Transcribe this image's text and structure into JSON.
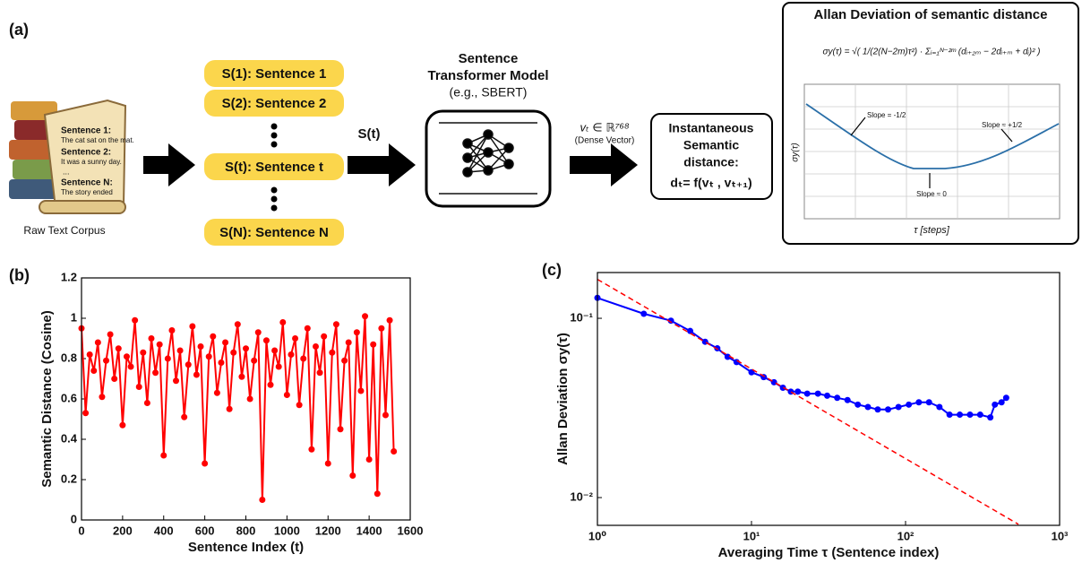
{
  "diagram": {
    "label": "(a)",
    "corpus": {
      "lines": [
        "Sentence 1:",
        "The cat sat on the mat.",
        "Sentence 2:",
        "It was a sunny day.",
        "...",
        "Sentence N:",
        "The story ended"
      ],
      "caption": "Raw Text Corpus"
    },
    "sentences": [
      "S(1): Sentence 1",
      "S(2): Sentence 2",
      "S(t): Sentence t",
      "S(N): Sentence N"
    ],
    "arrow_label": "S(t)",
    "model": {
      "title_lines": [
        "Sentence",
        "Transformer Model"
      ],
      "subtitle": "(e.g., SBERT)"
    },
    "vector_label": "vₜ ∈ ℝ⁷⁶⁸",
    "vector_note": "(Dense Vector)",
    "distance": {
      "lines": [
        "Instantaneous",
        "Semantic",
        "distance:"
      ],
      "formula": "dₜ= f(vₜ , vₜ₊₁)"
    },
    "allan": {
      "title": "Allan Deviation of semantic distance",
      "formula": "σy(τ) = √( 1/(2(N−2m)τ²) · Σᵢ₌₁ᴺ⁻²ᵐ (dᵢ₊₂ₘ − 2dᵢ₊ₘ + dᵢ)² )",
      "slopes": [
        "Slope = -1/2",
        "Slope ≈ +1/2",
        "Slope ≈ 0"
      ],
      "ylabel": "σy(τ)",
      "xlabel": "τ [steps]"
    }
  },
  "chart_data": [
    {
      "type": "line",
      "panel_label": "(b)",
      "xlabel": "Sentence Index (t)",
      "ylabel": "Semantic Distance (Cosine)",
      "x": [
        0,
        20,
        40,
        60,
        80,
        100,
        120,
        140,
        160,
        180,
        200,
        220,
        240,
        260,
        280,
        300,
        320,
        340,
        360,
        380,
        400,
        420,
        440,
        460,
        480,
        500,
        520,
        540,
        560,
        580,
        600,
        620,
        640,
        660,
        680,
        700,
        720,
        740,
        760,
        780,
        800,
        820,
        840,
        860,
        880,
        900,
        920,
        940,
        960,
        980,
        1000,
        1020,
        1040,
        1060,
        1080,
        1100,
        1120,
        1140,
        1160,
        1180,
        1200,
        1220,
        1240,
        1260,
        1280,
        1300,
        1320,
        1340,
        1360,
        1380,
        1400,
        1420,
        1440,
        1460,
        1480,
        1500,
        1520
      ],
      "series": [
        {
          "color": "#ff0000",
          "marker": true,
          "values": [
            0.95,
            0.53,
            0.82,
            0.74,
            0.88,
            0.61,
            0.79,
            0.92,
            0.7,
            0.85,
            0.47,
            0.81,
            0.76,
            0.99,
            0.66,
            0.83,
            0.58,
            0.9,
            0.73,
            0.87,
            0.32,
            0.8,
            0.94,
            0.69,
            0.84,
            0.51,
            0.77,
            0.96,
            0.72,
            0.86,
            0.28,
            0.81,
            0.91,
            0.63,
            0.78,
            0.88,
            0.55,
            0.83,
            0.97,
            0.71,
            0.85,
            0.6,
            0.79,
            0.93,
            0.1,
            0.89,
            0.67,
            0.84,
            0.76,
            0.98,
            0.62,
            0.82,
            0.9,
            0.57,
            0.8,
            0.95,
            0.35,
            0.86,
            0.73,
            0.91,
            0.28,
            0.83,
            0.97,
            0.45,
            0.79,
            0.88,
            0.22,
            0.93,
            0.64,
            1.01,
            0.3,
            0.87,
            0.13,
            0.95,
            0.52,
            0.99,
            0.34
          ]
        }
      ],
      "xlim": [
        0,
        1600
      ],
      "xticks": [
        0,
        200,
        400,
        600,
        800,
        1000,
        1200,
        1400,
        1600
      ],
      "ylim": [
        0,
        1.2
      ],
      "yticks": [
        0,
        0.2,
        0.4,
        0.6,
        0.8,
        1,
        1.2
      ]
    },
    {
      "type": "line",
      "panel_label": "(c)",
      "xlabel": "Averaging Time τ (Sentence index)",
      "ylabel": "Allan  Deviation σy(τ)",
      "log_x": true,
      "log_y": true,
      "series": [
        {
          "color": "#0000ff",
          "marker": true,
          "x": [
            1,
            2,
            3,
            4,
            5,
            6,
            7,
            8,
            10,
            12,
            14,
            16,
            18,
            20,
            23,
            27,
            31,
            36,
            42,
            49,
            57,
            66,
            77,
            90,
            105,
            122,
            142,
            166,
            193,
            225,
            262,
            305,
            355,
            380,
            420,
            450
          ],
          "values": [
            0.13,
            0.106,
            0.097,
            0.085,
            0.074,
            0.068,
            0.061,
            0.057,
            0.05,
            0.047,
            0.044,
            0.041,
            0.039,
            0.039,
            0.038,
            0.038,
            0.037,
            0.036,
            0.035,
            0.033,
            0.032,
            0.031,
            0.031,
            0.032,
            0.033,
            0.034,
            0.034,
            0.032,
            0.029,
            0.029,
            0.029,
            0.029,
            0.028,
            0.033,
            0.034,
            0.036
          ]
        },
        {
          "color": "#ff0000",
          "dashed": true,
          "x": [
            1,
            540
          ],
          "values": [
            0.165,
            0.0071
          ]
        }
      ],
      "xlim": [
        1,
        1000
      ],
      "xticks": [
        {
          "value": 1,
          "label": "10⁰"
        },
        {
          "value": 10,
          "label": "10¹"
        },
        {
          "value": 100,
          "label": "10²"
        },
        {
          "value": 1000,
          "label": "10³"
        }
      ],
      "ylim": [
        0.007,
        0.18
      ],
      "yticks": [
        {
          "value": 0.01,
          "label": "10⁻²"
        },
        {
          "value": 0.1,
          "label": "10⁻¹"
        }
      ]
    }
  ]
}
